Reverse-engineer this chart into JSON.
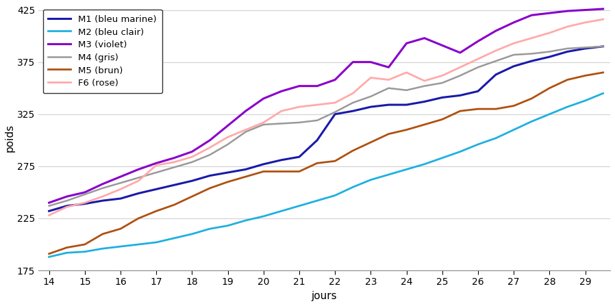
{
  "title": "",
  "xlabel": "jours",
  "ylabel": "poids",
  "xlim": [
    13.7,
    29.7
  ],
  "ylim": [
    175,
    430
  ],
  "yticks": [
    175,
    225,
    275,
    325,
    375,
    425
  ],
  "xticks": [
    14,
    15,
    16,
    17,
    18,
    19,
    20,
    21,
    22,
    23,
    24,
    25,
    26,
    27,
    28,
    29
  ],
  "background_color": "#ffffff",
  "grid_color": "#d0d0d0",
  "series": [
    {
      "label": "M1 (bleu marine)",
      "color": "#1a1aaa",
      "linewidth": 2.2,
      "x": [
        14.0,
        14.5,
        15.0,
        15.5,
        16.0,
        16.5,
        17.0,
        17.5,
        18.0,
        18.5,
        19.0,
        19.5,
        20.0,
        20.5,
        21.0,
        21.5,
        22.0,
        22.5,
        23.0,
        23.5,
        24.0,
        24.5,
        25.0,
        25.5,
        26.0,
        26.5,
        27.0,
        27.5,
        28.0,
        28.5,
        29.0,
        29.5
      ],
      "y": [
        232,
        237,
        239,
        242,
        244,
        249,
        253,
        257,
        261,
        266,
        269,
        272,
        277,
        281,
        284,
        300,
        325,
        328,
        332,
        334,
        334,
        337,
        341,
        343,
        347,
        363,
        371,
        376,
        380,
        385,
        388,
        390
      ]
    },
    {
      "label": "M2 (bleu clair)",
      "color": "#1eb0e0",
      "linewidth": 2.0,
      "x": [
        14.0,
        14.5,
        15.0,
        15.5,
        16.0,
        16.5,
        17.0,
        17.5,
        18.0,
        18.5,
        19.0,
        19.5,
        20.0,
        20.5,
        21.0,
        21.5,
        22.0,
        22.5,
        23.0,
        23.5,
        24.0,
        24.5,
        25.0,
        25.5,
        26.0,
        26.5,
        27.0,
        27.5,
        28.0,
        28.5,
        29.0,
        29.5
      ],
      "y": [
        188,
        192,
        193,
        196,
        198,
        200,
        202,
        206,
        210,
        215,
        218,
        223,
        227,
        232,
        237,
        242,
        247,
        255,
        262,
        267,
        272,
        277,
        283,
        289,
        296,
        302,
        310,
        318,
        325,
        332,
        338,
        345
      ]
    },
    {
      "label": "M3 (violet)",
      "color": "#8800cc",
      "linewidth": 2.2,
      "x": [
        14.0,
        14.5,
        15.0,
        15.5,
        16.0,
        16.5,
        17.0,
        17.5,
        18.0,
        18.5,
        19.0,
        19.5,
        20.0,
        20.5,
        21.0,
        21.5,
        22.0,
        22.5,
        23.0,
        23.5,
        24.0,
        24.5,
        25.0,
        25.5,
        26.0,
        26.5,
        27.0,
        27.5,
        28.0,
        28.5,
        29.0,
        29.5
      ],
      "y": [
        240,
        246,
        250,
        258,
        265,
        272,
        278,
        283,
        289,
        300,
        314,
        328,
        340,
        347,
        352,
        352,
        358,
        375,
        375,
        370,
        393,
        398,
        391,
        384,
        395,
        405,
        413,
        420,
        422,
        424,
        425,
        426
      ]
    },
    {
      "label": "M4 (gris)",
      "color": "#999999",
      "linewidth": 1.8,
      "x": [
        14.0,
        14.5,
        15.0,
        15.5,
        16.0,
        16.5,
        17.0,
        17.5,
        18.0,
        18.5,
        19.0,
        19.5,
        20.0,
        20.5,
        21.0,
        21.5,
        22.0,
        22.5,
        23.0,
        23.5,
        24.0,
        24.5,
        25.0,
        25.5,
        26.0,
        26.5,
        27.0,
        27.5,
        28.0,
        28.5,
        29.0,
        29.5
      ],
      "y": [
        237,
        242,
        248,
        254,
        259,
        264,
        269,
        274,
        279,
        286,
        296,
        308,
        315,
        316,
        317,
        319,
        327,
        336,
        342,
        350,
        348,
        352,
        355,
        362,
        370,
        376,
        382,
        383,
        385,
        388,
        389,
        390
      ]
    },
    {
      "label": "M5 (brun)",
      "color": "#b05010",
      "linewidth": 2.0,
      "x": [
        14.0,
        14.5,
        15.0,
        15.5,
        16.0,
        16.5,
        17.0,
        17.5,
        18.0,
        18.5,
        19.0,
        19.5,
        20.0,
        20.5,
        21.0,
        21.5,
        22.0,
        22.5,
        23.0,
        23.5,
        24.0,
        24.5,
        25.0,
        25.5,
        26.0,
        26.5,
        27.0,
        27.5,
        28.0,
        28.5,
        29.0,
        29.5
      ],
      "y": [
        191,
        197,
        200,
        210,
        215,
        225,
        232,
        238,
        246,
        254,
        260,
        265,
        270,
        270,
        270,
        278,
        280,
        290,
        298,
        306,
        310,
        315,
        320,
        328,
        330,
        330,
        333,
        340,
        350,
        358,
        362,
        365
      ]
    },
    {
      "label": "F6 (rose)",
      "color": "#ffaaaa",
      "linewidth": 2.0,
      "x": [
        14.0,
        14.5,
        15.0,
        15.5,
        16.0,
        16.5,
        17.0,
        17.5,
        18.0,
        18.5,
        19.0,
        19.5,
        20.0,
        20.5,
        21.0,
        21.5,
        22.0,
        22.5,
        23.0,
        23.5,
        24.0,
        24.5,
        25.0,
        25.5,
        26.0,
        26.5,
        27.0,
        27.5,
        28.0,
        28.5,
        29.0,
        29.5
      ],
      "y": [
        228,
        236,
        240,
        246,
        253,
        261,
        276,
        279,
        284,
        293,
        303,
        310,
        317,
        328,
        332,
        334,
        336,
        345,
        360,
        358,
        365,
        357,
        362,
        370,
        378,
        386,
        393,
        398,
        403,
        409,
        413,
        416
      ]
    }
  ],
  "legend_labels": [
    "M1 (bleu marine)",
    "M2 (bleu clair)",
    "M3 (violet)",
    "M4 (gris)",
    "M5 (brun)",
    "F6 (rose)"
  ]
}
